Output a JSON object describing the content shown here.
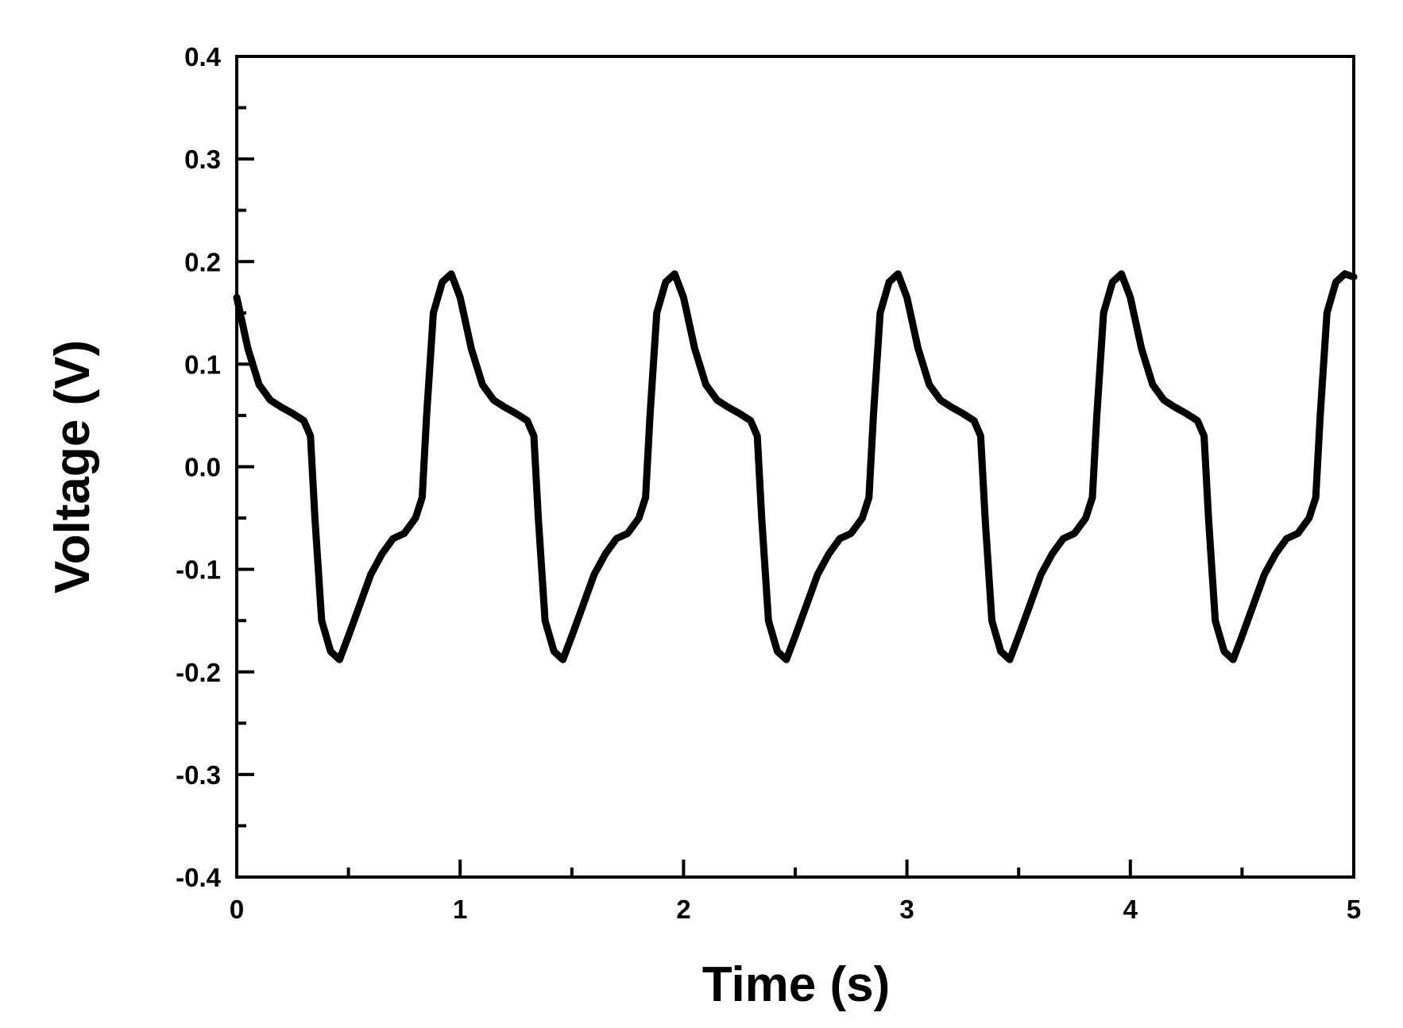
{
  "chart_data": {
    "type": "line",
    "title": "",
    "xlabel": "Time (s)",
    "ylabel": "Voltage (V)",
    "xlim": [
      0,
      5
    ],
    "ylim": [
      -0.4,
      0.4
    ],
    "xticks": [
      0,
      1,
      2,
      3,
      4,
      5
    ],
    "yticks": [
      -0.4,
      -0.3,
      -0.2,
      -0.1,
      0.0,
      0.1,
      0.2,
      0.3,
      0.4
    ],
    "xtick_labels": [
      "0",
      "1",
      "2",
      "3",
      "4",
      "5"
    ],
    "ytick_labels": [
      "-0.4",
      "-0.3",
      "-0.2",
      "-0.1",
      "0.0",
      "0.1",
      "0.2",
      "0.3",
      "0.4"
    ],
    "grid": false,
    "legend": "none",
    "line_color": "#000000",
    "series": [
      {
        "x": [
          0,
          0.05,
          0.1,
          0.15,
          0.2,
          0.25,
          0.3,
          0.33,
          0.35,
          0.38,
          0.42,
          0.46,
          0.5,
          0.55,
          0.6,
          0.65,
          0.7,
          0.75,
          0.8,
          0.83,
          0.85,
          0.88,
          0.92,
          0.96,
          1.0,
          1.05,
          1.1,
          1.15,
          1.2,
          1.25,
          1.3,
          1.33,
          1.35,
          1.38,
          1.42,
          1.46,
          1.5,
          1.55,
          1.6,
          1.65,
          1.7,
          1.75,
          1.8,
          1.83,
          1.85,
          1.88,
          1.92,
          1.96,
          2.0,
          2.05,
          2.1,
          2.15,
          2.2,
          2.25,
          2.3,
          2.33,
          2.35,
          2.38,
          2.42,
          2.46,
          2.5,
          2.55,
          2.6,
          2.65,
          2.7,
          2.75,
          2.8,
          2.83,
          2.85,
          2.88,
          2.92,
          2.96,
          3.0,
          3.05,
          3.1,
          3.15,
          3.2,
          3.25,
          3.3,
          3.33,
          3.35,
          3.38,
          3.42,
          3.46,
          3.5,
          3.55,
          3.6,
          3.65,
          3.7,
          3.75,
          3.8,
          3.83,
          3.85,
          3.88,
          3.92,
          3.96,
          4.0,
          4.05,
          4.1,
          4.15,
          4.2,
          4.25,
          4.3,
          4.33,
          4.35,
          4.38,
          4.42,
          4.46,
          4.5,
          4.55,
          4.6,
          4.65,
          4.7,
          4.75,
          4.8,
          4.83,
          4.85,
          4.88,
          4.92,
          4.96,
          5.0
        ],
        "y": [
          0.165,
          0.115,
          0.08,
          0.065,
          0.058,
          0.052,
          0.045,
          0.03,
          -0.05,
          -0.15,
          -0.18,
          -0.188,
          -0.165,
          -0.135,
          -0.105,
          -0.085,
          -0.07,
          -0.065,
          -0.05,
          -0.03,
          0.05,
          0.15,
          0.18,
          0.188,
          0.165,
          0.115,
          0.08,
          0.065,
          0.058,
          0.052,
          0.045,
          0.03,
          -0.05,
          -0.15,
          -0.18,
          -0.188,
          -0.165,
          -0.135,
          -0.105,
          -0.085,
          -0.07,
          -0.065,
          -0.05,
          -0.03,
          0.05,
          0.15,
          0.18,
          0.188,
          0.165,
          0.115,
          0.08,
          0.065,
          0.058,
          0.052,
          0.045,
          0.03,
          -0.05,
          -0.15,
          -0.18,
          -0.188,
          -0.165,
          -0.135,
          -0.105,
          -0.085,
          -0.07,
          -0.065,
          -0.05,
          -0.03,
          0.05,
          0.15,
          0.18,
          0.188,
          0.165,
          0.115,
          0.08,
          0.065,
          0.058,
          0.052,
          0.045,
          0.03,
          -0.05,
          -0.15,
          -0.18,
          -0.188,
          -0.165,
          -0.135,
          -0.105,
          -0.085,
          -0.07,
          -0.065,
          -0.05,
          -0.03,
          0.05,
          0.15,
          0.18,
          0.188,
          0.165,
          0.115,
          0.08,
          0.065,
          0.058,
          0.052,
          0.045,
          0.03,
          -0.05,
          -0.15,
          -0.18,
          -0.188,
          -0.165,
          -0.135,
          -0.105,
          -0.085,
          -0.07,
          -0.065,
          -0.05,
          -0.03,
          0.05,
          0.15,
          0.18,
          0.188,
          0.185
        ]
      }
    ]
  }
}
